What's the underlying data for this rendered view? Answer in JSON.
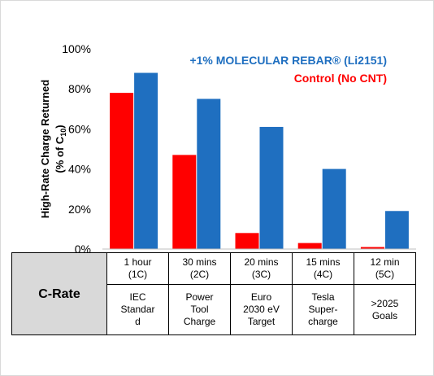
{
  "chart_data": {
    "type": "bar",
    "categories": [
      "1 hour\n(1C)",
      "30 mins\n(2C)",
      "20 mins\n(3C)",
      "15 mins\n(4C)",
      "12 min\n(5C)"
    ],
    "targets": [
      "IEC\nStandar\nd",
      "Power\nTool\nCharge",
      "Euro\n2030 eV\nTarget",
      "Tesla\nSuper-\ncharge",
      ">2025\nGoals"
    ],
    "series": [
      {
        "name": "Control (No CNT)",
        "color": "#ff0000",
        "values": [
          78,
          47,
          8,
          3,
          1
        ]
      },
      {
        "name": "+1% MOLECULAR REBAR® (Li2151)",
        "color": "#1f6fc0",
        "values": [
          88,
          75,
          61,
          40,
          19
        ]
      }
    ],
    "yticks": [
      "0%",
      "20%",
      "40%",
      "60%",
      "80%",
      "100%"
    ],
    "ylim": [
      0,
      100
    ],
    "ylabel_line1": "High-Rate Charge Returned",
    "ylabel_line2_prefix": "(% of C",
    "ylabel_line2_sub": "10",
    "ylabel_line2_suffix": ")",
    "row_header": "C-Rate",
    "grid": false
  }
}
